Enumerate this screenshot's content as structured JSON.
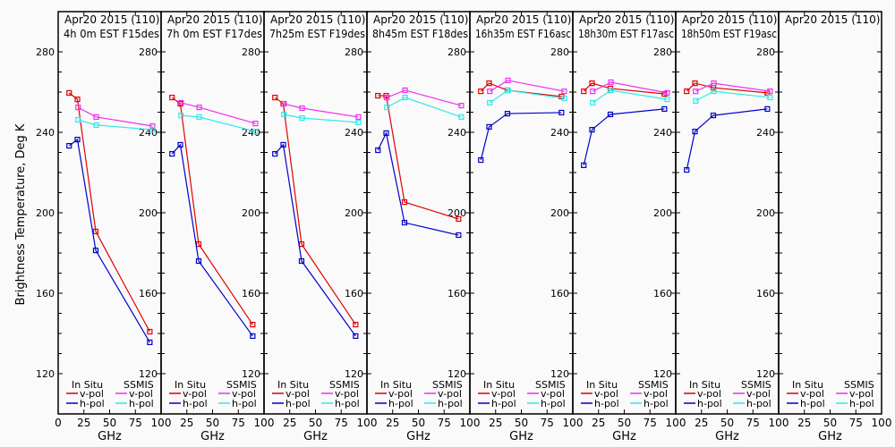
{
  "chart_data": {
    "type": "line",
    "ylabel": "Brightness Temperature, Deg K",
    "xlabel": "GHz",
    "xlim": [
      0,
      100
    ],
    "ylim": [
      110,
      290
    ],
    "xticks": [
      0,
      25,
      50,
      75,
      100
    ],
    "xtick_labels_first": [
      "0",
      "25",
      "50",
      "75",
      "100"
    ],
    "xtick_labels_rest": [
      "25",
      "50",
      "75",
      "100"
    ],
    "yticks_major": [
      120,
      160,
      200,
      240,
      280
    ],
    "yticks_minor_step": 10,
    "grid": false,
    "legend": {
      "placement": "bottom",
      "groups": [
        {
          "title": "In Situ",
          "entries": [
            {
              "label": "v-pol",
              "color": "#e00000"
            },
            {
              "label": "h-pol",
              "color": "#0000c8"
            }
          ]
        },
        {
          "title": "SSMIS",
          "entries": [
            {
              "label": "v-pol",
              "color": "#f030f0"
            },
            {
              "label": "h-pol",
              "color": "#30e8e8"
            }
          ]
        }
      ]
    },
    "series_styles": {
      "insitu_v": {
        "name": "In Situ v-pol",
        "color": "#e00000"
      },
      "insitu_h": {
        "name": "In Situ h-pol",
        "color": "#0000c8"
      },
      "ssmis_v": {
        "name": "SSMIS v-pol",
        "color": "#f030f0"
      },
      "ssmis_h": {
        "name": "SSMIS h-pol",
        "color": "#30e8e8"
      }
    },
    "panels": [
      {
        "title_line1": "Apr20 2015 (110)",
        "title_line2": "4h 0m  EST F15des",
        "series": {
          "insitu_v": {
            "x": [
              10.65,
              18.7,
              36.5,
              89
            ],
            "y": [
              259.6,
              256.4,
              190.7,
              140.9
            ]
          },
          "insitu_h": {
            "x": [
              10.65,
              18.7,
              36.5,
              89
            ],
            "y": [
              233.3,
              236.4,
              181.3,
              135.6
            ]
          },
          "ssmis_v": {
            "x": [
              19.35,
              37,
              91.65
            ],
            "y": [
              252.4,
              247.6,
              243.1
            ]
          },
          "ssmis_h": {
            "x": [
              19.35,
              37,
              91.65
            ],
            "y": [
              246.2,
              243.6,
              241.3
            ]
          }
        }
      },
      {
        "title_line1": "Apr20 2015 (110)",
        "title_line2": "7h 0m  EST F17des",
        "series": {
          "insitu_v": {
            "x": [
              10.65,
              18.7,
              36.5,
              89
            ],
            "y": [
              257.3,
              254.2,
              184.4,
              144.4
            ]
          },
          "insitu_h": {
            "x": [
              10.65,
              18.7,
              36.5,
              89
            ],
            "y": [
              229.3,
              233.8,
              176.0,
              138.7
            ]
          },
          "ssmis_v": {
            "x": [
              19.35,
              37,
              91.65
            ],
            "y": [
              254.7,
              252.4,
              244.4
            ]
          },
          "ssmis_h": {
            "x": [
              19.35,
              37,
              91.65
            ],
            "y": [
              248.4,
              247.6,
              240.4
            ]
          }
        }
      },
      {
        "title_line1": "Apr20 2015 (110)",
        "title_line2": "7h25m  EST F19des",
        "series": {
          "insitu_v": {
            "x": [
              10.65,
              18.7,
              36.5,
              89
            ],
            "y": [
              257.3,
              254.2,
              184.4,
              144.4
            ]
          },
          "insitu_h": {
            "x": [
              10.65,
              18.7,
              36.5,
              89
            ],
            "y": [
              229.3,
              233.8,
              176.0,
              138.7
            ]
          },
          "ssmis_v": {
            "x": [
              19.35,
              37,
              91.65
            ],
            "y": [
              254.2,
              252.0,
              247.6
            ]
          },
          "ssmis_h": {
            "x": [
              19.35,
              37,
              91.65
            ],
            "y": [
              248.9,
              247.1,
              244.9
            ]
          }
        }
      },
      {
        "title_line1": "Apr20 2015 (110)",
        "title_line2": "8h45m  EST F18des",
        "series": {
          "insitu_v": {
            "x": [
              10.65,
              18.7,
              36.5,
              89
            ],
            "y": [
              258.2,
              258.2,
              205.3,
              196.9
            ]
          },
          "insitu_h": {
            "x": [
              10.65,
              18.7,
              36.5,
              89
            ],
            "y": [
              231.1,
              239.6,
              195.1,
              188.9
            ]
          },
          "ssmis_v": {
            "x": [
              19.35,
              37,
              91.65
            ],
            "y": [
              257.3,
              260.9,
              253.3
            ]
          },
          "ssmis_h": {
            "x": [
              19.35,
              37,
              91.65
            ],
            "y": [
              252.4,
              257.3,
              247.6
            ]
          }
        }
      },
      {
        "title_line1": "Apr20 2015 (110)",
        "title_line2": "16h35m  EST F16asc",
        "series": {
          "insitu_v": {
            "x": [
              10.65,
              18.7,
              36.5,
              89
            ],
            "y": [
              260.4,
              264.4,
              260.9,
              257.8
            ]
          },
          "insitu_h": {
            "x": [
              10.65,
              18.7,
              36.5,
              89
            ],
            "y": [
              226.2,
              242.7,
              249.3,
              249.8
            ]
          },
          "ssmis_v": {
            "x": [
              19.35,
              37,
              91.65
            ],
            "y": [
              260.4,
              265.8,
              260.4
            ]
          },
          "ssmis_h": {
            "x": [
              19.35,
              37,
              91.65
            ],
            "y": [
              254.7,
              260.9,
              256.9
            ]
          }
        }
      },
      {
        "title_line1": "Apr20 2015 (110)",
        "title_line2": "18h30m  EST F17asc",
        "series": {
          "insitu_v": {
            "x": [
              10.65,
              18.7,
              36.5,
              89
            ],
            "y": [
              260.4,
              264.4,
              261.8,
              259.1
            ]
          },
          "insitu_h": {
            "x": [
              10.65,
              18.7,
              36.5,
              89
            ],
            "y": [
              223.6,
              241.3,
              248.9,
              251.6
            ]
          },
          "ssmis_v": {
            "x": [
              19.35,
              37,
              91.65
            ],
            "y": [
              260.4,
              264.9,
              259.6
            ]
          },
          "ssmis_h": {
            "x": [
              19.35,
              37,
              91.65
            ],
            "y": [
              254.7,
              260.9,
              256.4
            ]
          }
        }
      },
      {
        "title_line1": "Apr20 2015 (110)",
        "title_line2": "18h50m  EST F19asc",
        "series": {
          "insitu_v": {
            "x": [
              10.65,
              18.7,
              36.5,
              89
            ],
            "y": [
              260.4,
              264.4,
              262.2,
              259.6
            ]
          },
          "insitu_h": {
            "x": [
              10.65,
              18.7,
              36.5,
              89
            ],
            "y": [
              221.3,
              240.4,
              248.4,
              251.6
            ]
          },
          "ssmis_v": {
            "x": [
              19.35,
              37,
              91.65
            ],
            "y": [
              260.4,
              264.4,
              260.4
            ]
          },
          "ssmis_h": {
            "x": [
              19.35,
              37,
              91.65
            ],
            "y": [
              255.6,
              260.4,
              257.3
            ]
          }
        }
      },
      {
        "title_line1": "Apr20 2015 (110)",
        "title_line2": "",
        "series": {}
      }
    ]
  }
}
